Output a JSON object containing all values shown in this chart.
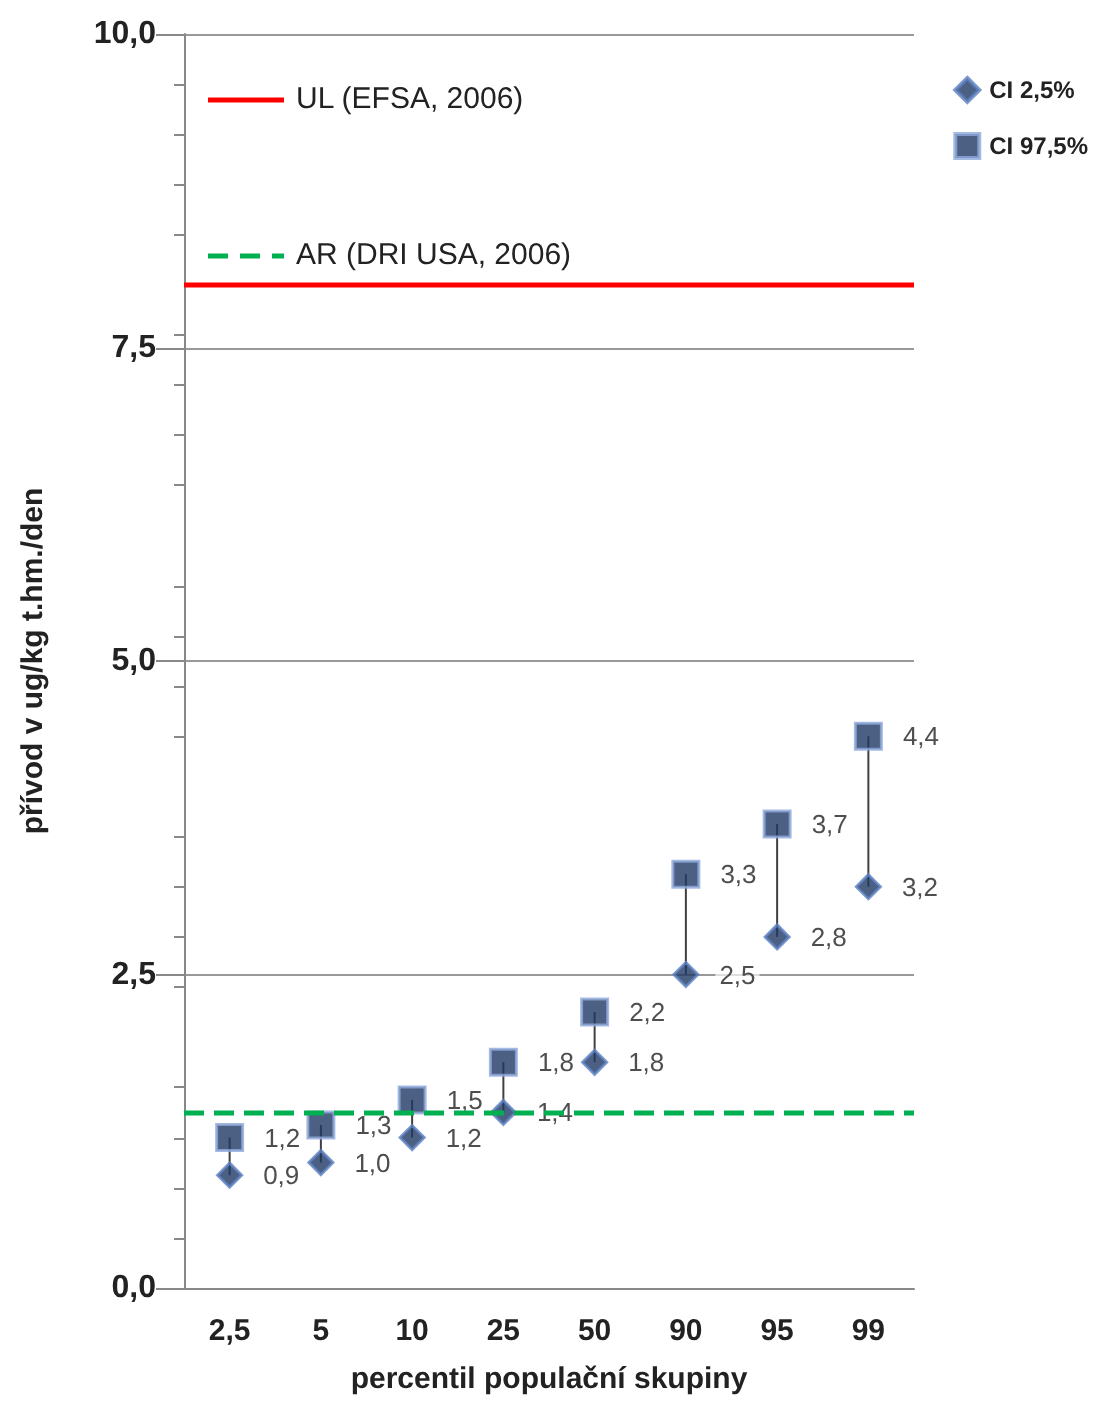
{
  "chart_data": {
    "type": "scatter",
    "xlabel": "percentil populační skupiny",
    "ylabel": "přívod v ug/kg t.hm./den",
    "categories": [
      "2,5",
      "5",
      "10",
      "25",
      "50",
      "90",
      "95",
      "99"
    ],
    "series": [
      {
        "name": "CI 2,5%",
        "color": "#1f3864",
        "marker": "diamond",
        "values": [
          0.9,
          1.0,
          1.2,
          1.4,
          1.8,
          2.5,
          2.8,
          3.2
        ],
        "value_labels": [
          "0,9",
          "1,0",
          "1,2",
          "1,4",
          "1,8",
          "2,5",
          "2,8",
          "3,2"
        ]
      },
      {
        "name": "CI 97,5%",
        "color": "#1f3864",
        "marker": "square",
        "values": [
          1.2,
          1.3,
          1.5,
          1.8,
          2.2,
          3.3,
          3.7,
          4.4
        ],
        "value_labels": [
          "1,2",
          "1,3",
          "1,5",
          "1,8",
          "2,2",
          "3,3",
          "3,7",
          "4,4"
        ]
      }
    ],
    "ylim": [
      0,
      10
    ],
    "yticks": [
      {
        "value": 0,
        "label": "0,0"
      },
      {
        "value": 2.5,
        "label": "2,5"
      },
      {
        "value": 5,
        "label": "5,0"
      },
      {
        "value": 7.5,
        "label": "7,5"
      },
      {
        "value": 10,
        "label": "10,0"
      }
    ],
    "grid": "y",
    "legend": "top right",
    "ref_lines": [
      {
        "axis": "y",
        "value": 8.0,
        "label": "UL (EFSA, 2006)",
        "color": "#ff0000",
        "line_style": "solid"
      },
      {
        "axis": "y",
        "value": 1.4,
        "label": "AR (DRI USA, 2006)",
        "color": "#00b050",
        "line_style": "dashed"
      }
    ]
  }
}
